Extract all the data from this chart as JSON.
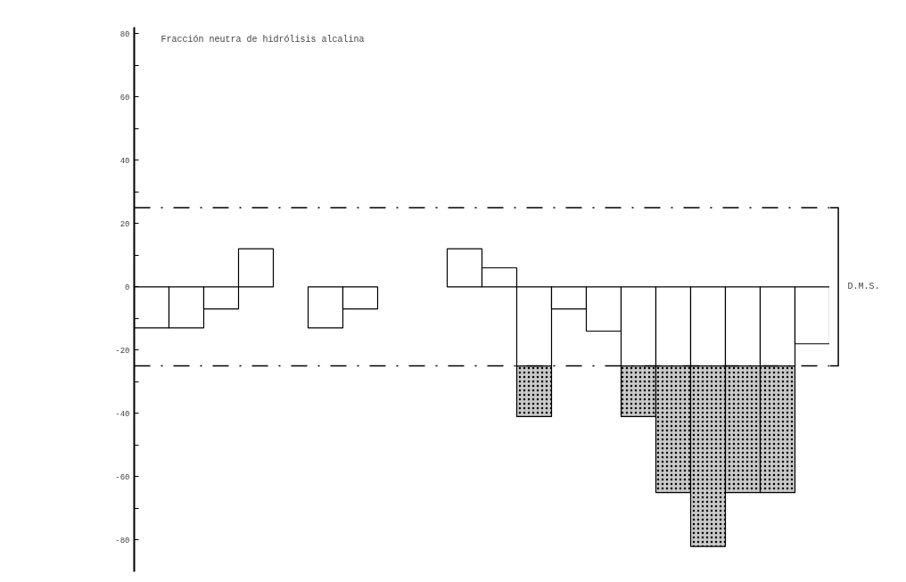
{
  "chart_data": {
    "type": "bar",
    "title": "Fracción neutra de hidrólisis alcalina",
    "categories": [
      null,
      null,
      null,
      null,
      null,
      null,
      null,
      null,
      null,
      null,
      null,
      null,
      null,
      null,
      null,
      null,
      null,
      null,
      null,
      null
    ],
    "stacked": true,
    "series": [
      {
        "color": "#ffffff",
        "values": [
          -13,
          -13,
          -7,
          12,
          0,
          -13,
          -7,
          0,
          0,
          12,
          6,
          -25,
          -7,
          -14,
          -25,
          -25,
          -25,
          -25,
          -25,
          -18
        ]
      },
      {
        "color": "#c8c8c8",
        "values": [
          null,
          null,
          null,
          null,
          null,
          null,
          null,
          null,
          null,
          null,
          null,
          -16,
          null,
          null,
          -16,
          -40,
          -57,
          -40,
          -40,
          null
        ]
      }
    ],
    "ylim": [
      -90,
      82
    ],
    "yticks": [
      -80,
      {
        "value": -70,
        "label": null
      },
      -60,
      {
        "value": -50,
        "label": null
      },
      -40,
      {
        "value": -30,
        "label": null
      },
      -20,
      {
        "value": -10,
        "label": null
      },
      0,
      {
        "value": 10,
        "label": null
      },
      20,
      {
        "value": 30,
        "label": null
      },
      40,
      {
        "value": 50,
        "label": null
      },
      60,
      {
        "value": 70,
        "label": null
      },
      80
    ],
    "ref_lines": [
      {
        "axis": "y",
        "value": 25,
        "color": "#000000"
      },
      {
        "axis": "y",
        "value": -25,
        "color": "#000000"
      }
    ],
    "annotations": [
      "D.M.S."
    ]
  }
}
